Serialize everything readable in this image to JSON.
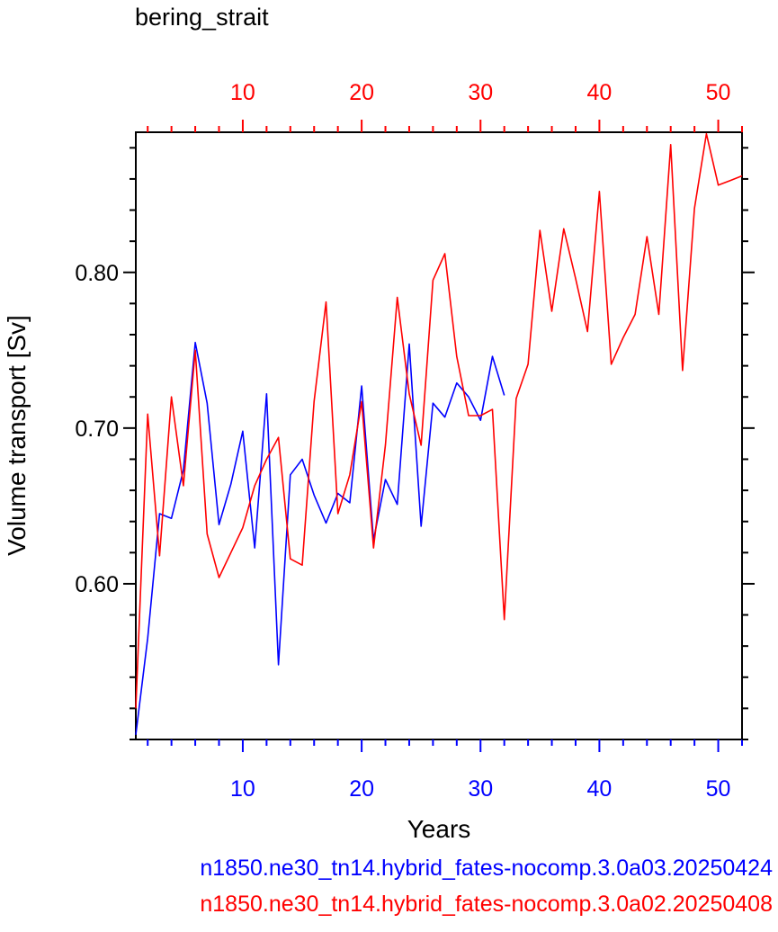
{
  "chart_data": {
    "type": "line",
    "title": "bering_strait",
    "xlabel": "Years",
    "ylabel": "Volume transport [Sv]",
    "xlim": [
      1,
      52
    ],
    "ylim": [
      0.5,
      0.89
    ],
    "yticks": [
      0.6,
      0.7,
      0.8
    ],
    "ytick_labels": [
      "0.60",
      "0.70",
      "0.80"
    ],
    "xticks": [
      10,
      20,
      30,
      40,
      50
    ],
    "grid": false,
    "series": [
      {
        "name": "n1850.ne30_tn14.hybrid_fates-nocomp.3.0a03.20250424",
        "color": "#0000ff",
        "axis": "bottom",
        "x": [
          1,
          2,
          3,
          4,
          5,
          6,
          7,
          8,
          9,
          10,
          11,
          12,
          13,
          14,
          15,
          16,
          17,
          18,
          19,
          20,
          21,
          22,
          23,
          24,
          25,
          26,
          27,
          28,
          29,
          30,
          31,
          32
        ],
        "y": [
          0.503,
          0.565,
          0.645,
          0.642,
          0.673,
          0.755,
          0.716,
          0.638,
          0.664,
          0.698,
          0.623,
          0.722,
          0.548,
          0.67,
          0.68,
          0.657,
          0.639,
          0.658,
          0.652,
          0.727,
          0.628,
          0.667,
          0.651,
          0.754,
          0.637,
          0.716,
          0.707,
          0.729,
          0.72,
          0.705,
          0.746,
          0.721
        ]
      },
      {
        "name": "n1850.ne30_tn14.hybrid_fates-nocomp.3.0a02.20250408",
        "color": "#ff0000",
        "axis": "top",
        "x": [
          1,
          2,
          3,
          4,
          5,
          6,
          7,
          8,
          9,
          10,
          11,
          12,
          13,
          14,
          15,
          16,
          17,
          18,
          19,
          20,
          21,
          22,
          23,
          24,
          25,
          26,
          27,
          28,
          29,
          30,
          31,
          32,
          33,
          34,
          35,
          36,
          37,
          38,
          39,
          40,
          41,
          42,
          43,
          44,
          45,
          46,
          47,
          48,
          49,
          50,
          51,
          52
        ],
        "y": [
          0.52,
          0.709,
          0.618,
          0.72,
          0.663,
          0.75,
          0.632,
          0.604,
          0.62,
          0.636,
          0.663,
          0.68,
          0.694,
          0.616,
          0.612,
          0.717,
          0.781,
          0.645,
          0.67,
          0.717,
          0.623,
          0.689,
          0.784,
          0.722,
          0.689,
          0.795,
          0.812,
          0.746,
          0.708,
          0.708,
          0.712,
          0.577,
          0.719,
          0.741,
          0.827,
          0.775,
          0.828,
          0.796,
          0.762,
          0.852,
          0.741,
          0.758,
          0.773,
          0.823,
          0.773,
          0.882,
          0.737,
          0.841,
          0.889,
          0.856,
          0.859,
          0.862
        ]
      }
    ]
  }
}
